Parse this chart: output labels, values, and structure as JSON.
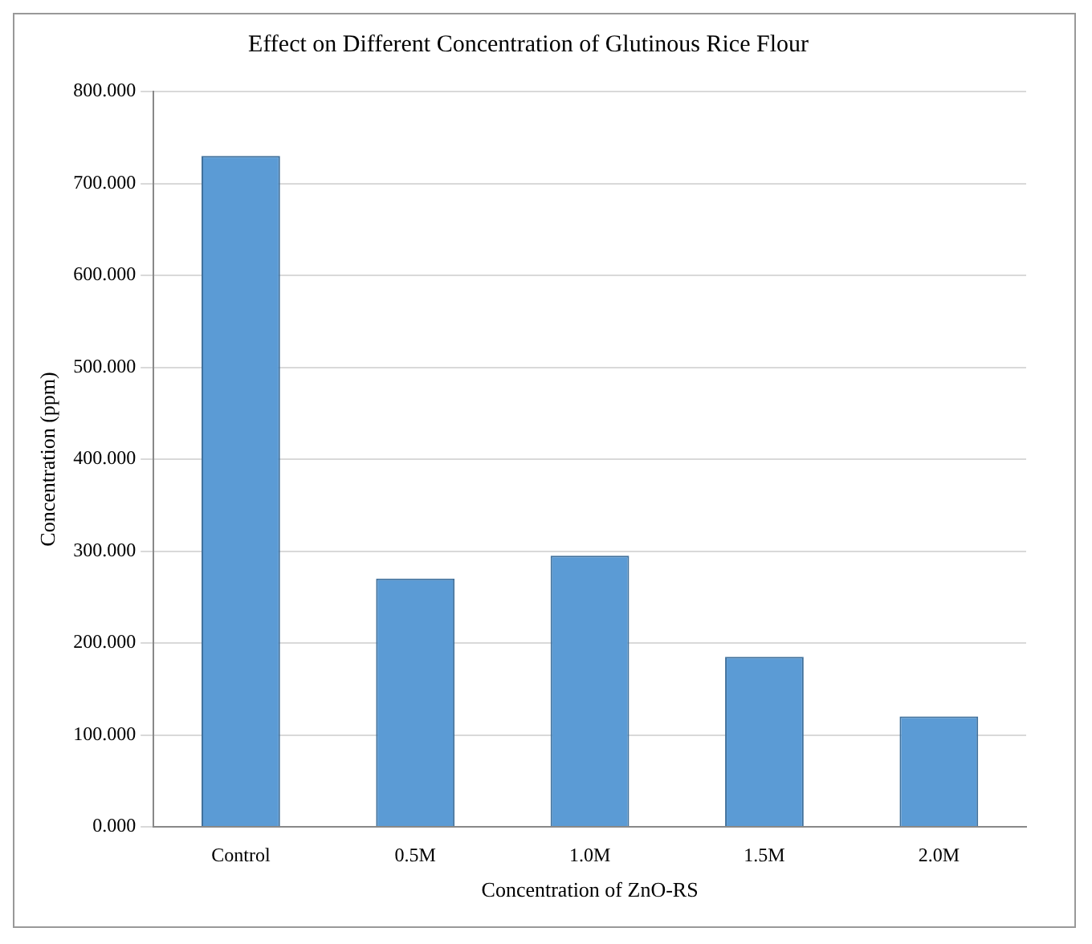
{
  "chart_data": {
    "type": "bar",
    "title": "Effect on Different Concentration of Glutinous Rice Flour",
    "xlabel": "Concentration of ZnO-RS",
    "ylabel": "Concentration (ppm)",
    "categories": [
      "Control",
      "0.5M",
      "1.0M",
      "1.5M",
      "2.0M"
    ],
    "values": [
      730,
      270,
      295,
      185,
      120
    ],
    "color": "#5b9bd5",
    "ylim": [
      0,
      800
    ],
    "yticks": [
      {
        "value": 0,
        "label": "0.000"
      },
      {
        "value": 100,
        "label": "100.000"
      },
      {
        "value": 200,
        "label": "200.000"
      },
      {
        "value": 300,
        "label": "300.000"
      },
      {
        "value": 400,
        "label": "400.000"
      },
      {
        "value": 500,
        "label": "500.000"
      },
      {
        "value": 600,
        "label": "600.000"
      },
      {
        "value": 700,
        "label": "700.000"
      },
      {
        "value": 800,
        "label": "800.000"
      }
    ],
    "grid": "y"
  }
}
